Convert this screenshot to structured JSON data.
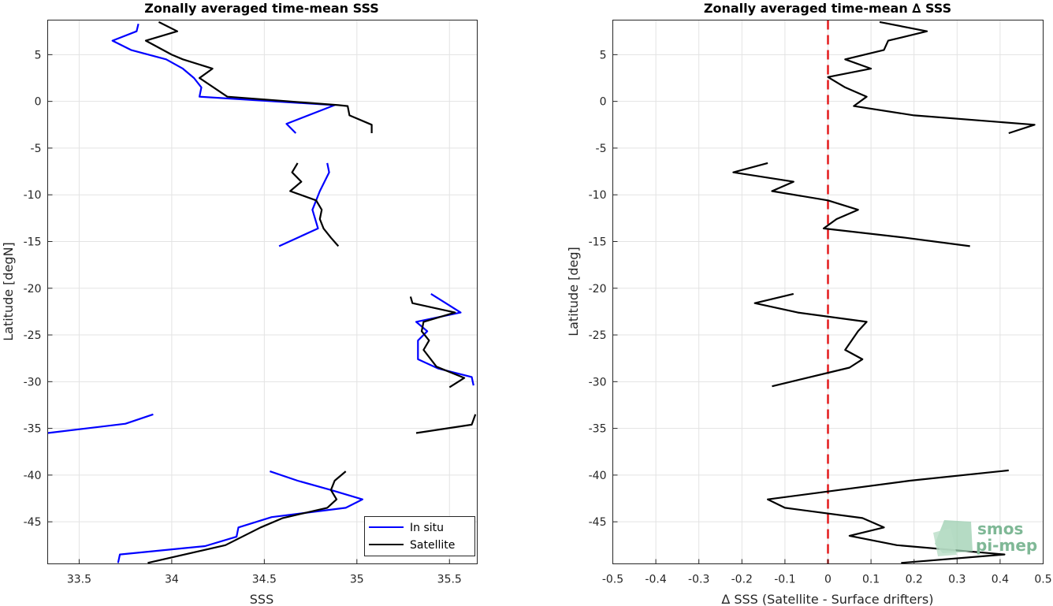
{
  "chart_data": [
    {
      "type": "line",
      "title": "Zonally averaged time-mean SSS",
      "xlabel": "SSS",
      "ylabel": "Latitude [degN]",
      "xlim": [
        33.33,
        35.65
      ],
      "ylim": [
        -49.5,
        8.7
      ],
      "xticks": [
        33.5,
        34,
        34.5,
        35,
        35.5
      ],
      "xtick_labels": [
        "33.5",
        "34",
        "34.5",
        "35",
        "35.5"
      ],
      "yticks": [
        5,
        0,
        -5,
        -10,
        -15,
        -20,
        -25,
        -30,
        -35,
        -40,
        -45
      ],
      "ytick_labels": [
        "5",
        "0",
        "-5",
        "-10",
        "-15",
        "-20",
        "-25",
        "-30",
        "-35",
        "-40",
        "-45"
      ],
      "grid": true,
      "legend_location": "bottom-right",
      "series": [
        {
          "name": "In situ",
          "color": "#0000ff",
          "segments": [
            [
              [
                33.82,
                8.3
              ],
              [
                33.81,
                7.5
              ],
              [
                33.68,
                6.5
              ],
              [
                33.78,
                5.5
              ],
              [
                33.97,
                4.5
              ],
              [
                34.06,
                3.5
              ],
              [
                34.12,
                2.5
              ],
              [
                34.16,
                1.5
              ],
              [
                34.15,
                0.5
              ],
              [
                34.88,
                -0.4
              ],
              [
                34.62,
                -2.4
              ],
              [
                34.67,
                -3.4
              ]
            ],
            [
              [
                34.84,
                -6.6
              ],
              [
                34.85,
                -7.6
              ],
              [
                34.8,
                -9.6
              ],
              [
                34.76,
                -11.6
              ],
              [
                34.79,
                -13.6
              ],
              [
                34.69,
                -14.5
              ],
              [
                34.58,
                -15.5
              ]
            ],
            [
              [
                35.4,
                -20.6
              ],
              [
                35.48,
                -21.6
              ],
              [
                35.56,
                -22.6
              ],
              [
                35.32,
                -23.6
              ],
              [
                35.38,
                -24.6
              ],
              [
                35.33,
                -25.6
              ],
              [
                35.33,
                -27.6
              ],
              [
                35.44,
                -28.6
              ],
              [
                35.62,
                -29.5
              ],
              [
                35.63,
                -30.4
              ]
            ],
            [
              [
                33.9,
                -33.5
              ],
              [
                33.75,
                -34.5
              ],
              [
                33.33,
                -35.5
              ]
            ],
            [
              [
                34.53,
                -39.6
              ],
              [
                34.68,
                -40.6
              ],
              [
                34.86,
                -41.6
              ],
              [
                35.03,
                -42.6
              ],
              [
                34.94,
                -43.5
              ],
              [
                34.54,
                -44.5
              ],
              [
                34.36,
                -45.6
              ],
              [
                34.35,
                -46.6
              ],
              [
                34.18,
                -47.6
              ],
              [
                33.72,
                -48.5
              ],
              [
                33.71,
                -49.4
              ]
            ]
          ]
        },
        {
          "name": "Satellite",
          "color": "#000000",
          "segments": [
            [
              [
                33.93,
                8.5
              ],
              [
                34.03,
                7.5
              ],
              [
                33.86,
                6.5
              ],
              [
                34.0,
                5.0
              ],
              [
                34.06,
                4.5
              ],
              [
                34.22,
                3.5
              ],
              [
                34.15,
                2.5
              ],
              [
                34.3,
                0.5
              ],
              [
                34.9,
                -0.4
              ],
              [
                34.95,
                -0.5
              ],
              [
                34.96,
                -1.5
              ],
              [
                35.08,
                -2.5
              ],
              [
                35.08,
                -3.4
              ]
            ],
            [
              [
                34.68,
                -6.6
              ],
              [
                34.65,
                -7.6
              ],
              [
                34.7,
                -8.6
              ],
              [
                34.64,
                -9.6
              ],
              [
                34.78,
                -10.6
              ],
              [
                34.81,
                -11.6
              ],
              [
                34.8,
                -12.6
              ],
              [
                34.82,
                -13.6
              ],
              [
                34.86,
                -14.6
              ],
              [
                34.9,
                -15.5
              ]
            ],
            [
              [
                35.29,
                -20.9
              ],
              [
                35.3,
                -21.6
              ],
              [
                35.53,
                -22.6
              ],
              [
                35.36,
                -23.6
              ],
              [
                35.35,
                -24.6
              ],
              [
                35.39,
                -25.6
              ],
              [
                35.36,
                -26.6
              ],
              [
                35.43,
                -28.4
              ],
              [
                35.58,
                -29.6
              ],
              [
                35.5,
                -30.6
              ]
            ],
            [
              [
                35.64,
                -33.5
              ],
              [
                35.62,
                -34.6
              ],
              [
                35.32,
                -35.5
              ]
            ],
            [
              [
                34.94,
                -39.6
              ],
              [
                34.88,
                -40.6
              ],
              [
                34.86,
                -41.6
              ],
              [
                34.89,
                -42.6
              ],
              [
                34.84,
                -43.5
              ],
              [
                34.6,
                -44.6
              ],
              [
                34.48,
                -45.6
              ],
              [
                34.29,
                -47.5
              ],
              [
                33.87,
                -49.4
              ]
            ]
          ]
        }
      ]
    },
    {
      "type": "line",
      "title": "Zonally averaged time-mean ∆ SSS",
      "xlabel": "∆ SSS (Satellite - Surface drifters)",
      "ylabel": "Latitude [deg]",
      "xlim": [
        -0.5,
        0.5
      ],
      "ylim": [
        -49.5,
        8.7
      ],
      "xticks": [
        -0.5,
        -0.4,
        -0.3,
        -0.2,
        -0.1,
        0,
        0.1,
        0.2,
        0.3,
        0.4,
        0.5
      ],
      "xtick_labels": [
        "-0.5",
        "-0.4",
        "-0.3",
        "-0.2",
        "-0.1",
        "0",
        "0.1",
        "0.2",
        "0.3",
        "0.4",
        "0.5"
      ],
      "yticks": [
        5,
        0,
        -5,
        -10,
        -15,
        -20,
        -25,
        -30,
        -35,
        -40,
        -45
      ],
      "ytick_labels": [
        "5",
        "0",
        "-5",
        "-10",
        "-15",
        "-20",
        "-25",
        "-30",
        "-35",
        "-40",
        "-45"
      ],
      "grid": true,
      "reference_line": {
        "x": 0,
        "color": "#e31a1c",
        "style": "dashed"
      },
      "series": [
        {
          "color": "#000000",
          "segments": [
            [
              [
                0.12,
                8.5
              ],
              [
                0.23,
                7.5
              ],
              [
                0.14,
                6.5
              ],
              [
                0.13,
                5.5
              ],
              [
                0.04,
                4.5
              ],
              [
                0.1,
                3.5
              ],
              [
                0.0,
                2.6
              ],
              [
                0.04,
                1.5
              ],
              [
                0.09,
                0.5
              ],
              [
                0.06,
                -0.5
              ],
              [
                0.2,
                -1.5
              ],
              [
                0.48,
                -2.5
              ],
              [
                0.42,
                -3.4
              ]
            ],
            [
              [
                -0.14,
                -6.6
              ],
              [
                -0.22,
                -7.6
              ],
              [
                -0.08,
                -8.6
              ],
              [
                -0.13,
                -9.6
              ],
              [
                0.0,
                -10.6
              ],
              [
                0.07,
                -11.6
              ],
              [
                0.02,
                -12.6
              ],
              [
                -0.01,
                -13.6
              ],
              [
                0.18,
                -14.6
              ],
              [
                0.33,
                -15.5
              ]
            ],
            [
              [
                -0.08,
                -20.6
              ],
              [
                -0.17,
                -21.6
              ],
              [
                -0.07,
                -22.6
              ],
              [
                0.09,
                -23.6
              ],
              [
                0.07,
                -24.6
              ],
              [
                0.04,
                -26.6
              ],
              [
                0.08,
                -27.6
              ],
              [
                0.05,
                -28.5
              ],
              [
                -0.13,
                -30.5
              ]
            ],
            [
              [
                0.42,
                -39.5
              ],
              [
                0.19,
                -40.6
              ],
              [
                -0.14,
                -42.6
              ],
              [
                -0.1,
                -43.5
              ],
              [
                0.08,
                -44.6
              ],
              [
                0.13,
                -45.6
              ],
              [
                0.05,
                -46.5
              ],
              [
                0.16,
                -47.5
              ],
              [
                0.41,
                -48.5
              ],
              [
                0.17,
                -49.4
              ]
            ]
          ]
        }
      ]
    }
  ],
  "logo": {
    "line1": "smos",
    "line2": "pi-mep"
  }
}
